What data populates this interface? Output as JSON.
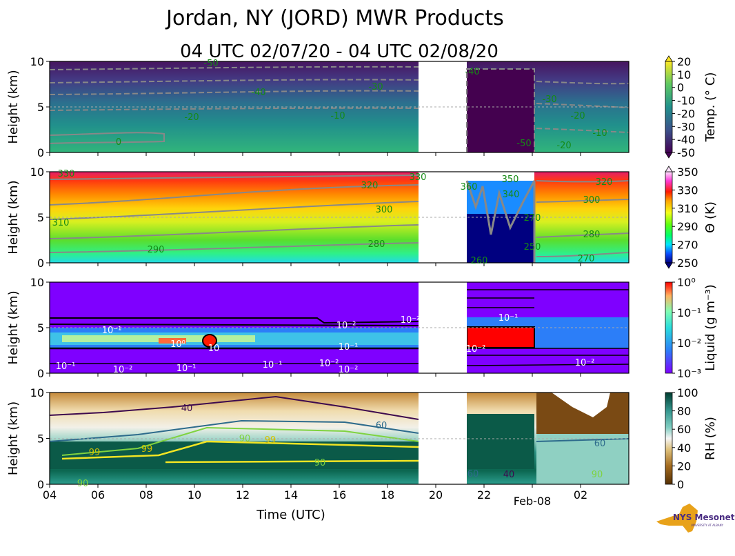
{
  "title": "Jordan, NY (JORD) MWR Products",
  "subtitle": "04 UTC 02/07/20 - 04 UTC 02/08/20",
  "colors": {
    "contour_label": "#158a15",
    "contour_line": "#888888",
    "missing": "#ffffff",
    "frame": "#000000"
  },
  "logo": {
    "text": "NYS Mesonet",
    "subtext": "UNIVERSITY AT ALBANY",
    "state_color": "#e8a21a",
    "brand_color": "#4b2e83"
  },
  "chart_data": [
    {
      "type": "heatmap",
      "name": "temperature",
      "title": "",
      "xlabel": "",
      "ylabel": "Height (km)",
      "ylim": [
        0,
        10
      ],
      "y_ticks": [
        "0",
        "5",
        "10"
      ],
      "x_ticks": [
        "04",
        "06",
        "08",
        "10",
        "12",
        "14",
        "16",
        "18",
        "20",
        "22",
        "Feb-08",
        "02"
      ],
      "show_x_tick_labels": false,
      "missing_hours": [
        19.2,
        21.2
      ],
      "colorbar": {
        "label": "Temp. (° C)",
        "ticks": [
          "20",
          "10",
          "0",
          "-10",
          "-20",
          "-30",
          "-40",
          "-50"
        ],
        "colormap": "viridis",
        "extend": "both"
      },
      "contour_labels": [
        "-50",
        "-40",
        "-30",
        "-20",
        "-10",
        "0",
        "-40",
        "-30",
        "-20",
        "-10",
        "-50",
        "-20"
      ]
    },
    {
      "type": "heatmap",
      "name": "potential_temperature",
      "ylabel": "Height (km)",
      "ylim": [
        0,
        10
      ],
      "y_ticks": [
        "0",
        "5",
        "10"
      ],
      "show_x_tick_labels": false,
      "colorbar": {
        "label": "Θ (K)",
        "ticks": [
          "350",
          "330",
          "310",
          "290",
          "270",
          "250"
        ],
        "colormap": "gist_ncar",
        "extend": "both"
      },
      "contour_labels": [
        "330",
        "320",
        "310",
        "300",
        "290",
        "280",
        "330",
        "320",
        "300",
        "280",
        "270",
        "360",
        "350",
        "340",
        "270",
        "250",
        "260"
      ]
    },
    {
      "type": "heatmap",
      "name": "liquid",
      "ylabel": "Height (km)",
      "ylim": [
        0,
        10
      ],
      "y_ticks": [
        "0",
        "5",
        "10"
      ],
      "show_x_tick_labels": false,
      "colorbar": {
        "label": "Liquid (g m⁻³)",
        "ticks": [
          "10⁰",
          "10⁻¹",
          "10⁻²",
          "10⁻³"
        ],
        "colormap": "rainbow",
        "scale": "log",
        "range": [
          0.001,
          1
        ]
      },
      "contour_labels": [
        "10⁻¹",
        "10⁰",
        "10",
        "10⁻²",
        "10⁻¹",
        "10⁻²",
        "10⁻¹",
        "10⁻²",
        "10⁻¹",
        "10⁻¹",
        "10⁻²",
        "10⁻²",
        "10⁻²",
        "10⁻¹",
        "10⁻²"
      ]
    },
    {
      "type": "heatmap",
      "name": "relative_humidity",
      "xlabel": "Time (UTC)",
      "ylabel": "Height (km)",
      "ylim": [
        0,
        10
      ],
      "y_ticks": [
        "0",
        "5",
        "10"
      ],
      "x_ticks": [
        "04",
        "06",
        "08",
        "10",
        "12",
        "14",
        "16",
        "18",
        "20",
        "22",
        "Feb-08",
        "02"
      ],
      "colorbar": {
        "label": "RH (%)",
        "ticks": [
          "100",
          "80",
          "60",
          "40",
          "20",
          "0"
        ],
        "colormap": "BrBG"
      },
      "contour_labels": [
        "40",
        "60",
        "90",
        "99",
        "99",
        "99",
        "90",
        "90",
        "60",
        "40",
        "60",
        "90"
      ]
    }
  ]
}
